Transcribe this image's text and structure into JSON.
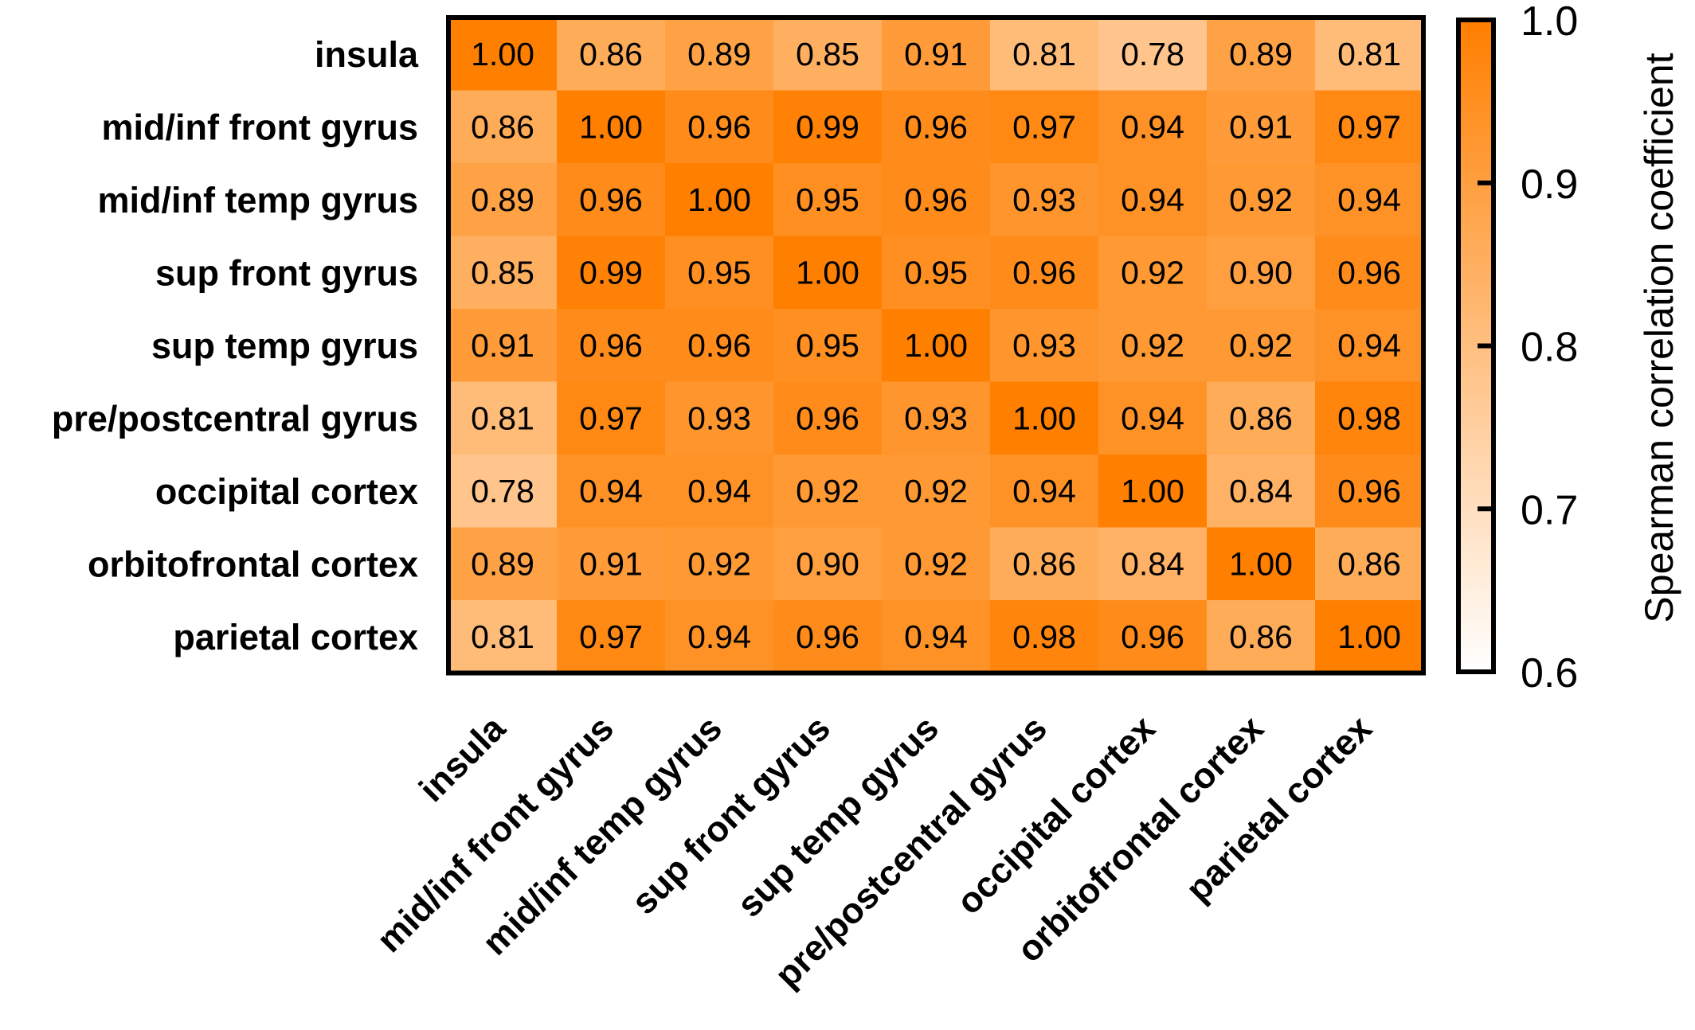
{
  "chart_data": {
    "type": "heatmap",
    "rows": [
      "insula",
      "mid/inf front gyrus",
      "mid/inf temp gyrus",
      "sup front gyrus",
      "sup temp gyrus",
      "pre/postcentral gyrus",
      "occipital cortex",
      "orbitofrontal cortex",
      "parietal cortex"
    ],
    "columns": [
      "insula",
      "mid/inf front gyrus",
      "mid/inf temp gyrus",
      "sup front gyrus",
      "sup temp gyrus",
      "pre/postcentral gyrus",
      "occipital cortex",
      "orbitofrontal cortex",
      "parietal cortex"
    ],
    "values": [
      [
        1.0,
        0.86,
        0.89,
        0.85,
        0.91,
        0.81,
        0.78,
        0.89,
        0.81
      ],
      [
        0.86,
        1.0,
        0.96,
        0.99,
        0.96,
        0.97,
        0.94,
        0.91,
        0.97
      ],
      [
        0.89,
        0.96,
        1.0,
        0.95,
        0.96,
        0.93,
        0.94,
        0.92,
        0.94
      ],
      [
        0.85,
        0.99,
        0.95,
        1.0,
        0.95,
        0.96,
        0.92,
        0.9,
        0.96
      ],
      [
        0.91,
        0.96,
        0.96,
        0.95,
        1.0,
        0.93,
        0.92,
        0.92,
        0.94
      ],
      [
        0.81,
        0.97,
        0.93,
        0.96,
        0.93,
        1.0,
        0.94,
        0.86,
        0.98
      ],
      [
        0.78,
        0.94,
        0.94,
        0.92,
        0.92,
        0.94,
        1.0,
        0.84,
        0.96
      ],
      [
        0.89,
        0.91,
        0.92,
        0.9,
        0.92,
        0.86,
        0.84,
        1.0,
        0.86
      ],
      [
        0.81,
        0.97,
        0.94,
        0.96,
        0.94,
        0.98,
        0.96,
        0.86,
        1.0
      ]
    ],
    "colorbar": {
      "label": "Spearman correlation coefficient",
      "range": [
        0.6,
        1.0
      ],
      "ticks": [
        0.6,
        0.7,
        0.8,
        0.9,
        1.0
      ],
      "tick_labels": [
        "0.6",
        "0.7",
        "0.8",
        "0.9",
        "1.0"
      ],
      "color_low": "#ffffff",
      "color_high": "#ff7f00"
    }
  }
}
